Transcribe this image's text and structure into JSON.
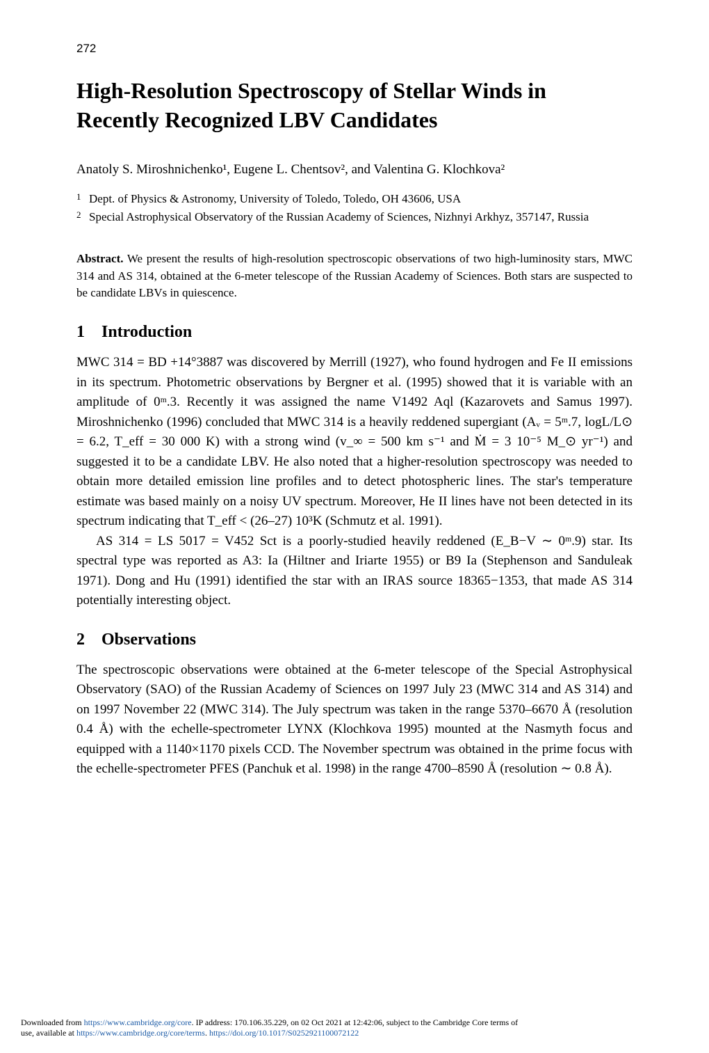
{
  "page_number": "272",
  "title": "High-Resolution Spectroscopy of Stellar Winds in Recently Recognized LBV Candidates",
  "authors": "Anatoly S. Miroshnichenko¹, Eugene L. Chentsov², and Valentina G. Klochkova²",
  "affiliations": [
    {
      "num": "1",
      "text": "Dept. of Physics & Astronomy, University of Toledo, Toledo, OH 43606, USA"
    },
    {
      "num": "2",
      "text": "Special Astrophysical Observatory of the Russian Academy of Sciences, Nizhnyi Arkhyz, 357147, Russia"
    }
  ],
  "abstract_label": "Abstract.",
  "abstract_body": " We present the results of high-resolution spectroscopic observations of two high-luminosity stars, MWC 314 and AS 314, obtained at the 6-meter telescope of the Russian Academy of Sciences. Both stars are suspected to be candidate LBVs in quiescence.",
  "sections": {
    "s1": {
      "num": "1",
      "heading": "Introduction",
      "p1": "MWC 314 = BD +14°3887 was discovered by Merrill (1927), who found hydrogen and Fe II emissions in its spectrum. Photometric observations by Bergner et al. (1995) showed that it is variable with an amplitude of 0ᵐ.3. Recently it was assigned the name V1492 Aql (Kazarovets and Samus 1997). Miroshnichenko (1996) concluded that MWC 314 is a heavily reddened supergiant (Aᵥ = 5ᵐ.7, logL/L⊙ = 6.2, T_eff = 30 000 K) with a strong wind (v_∞ = 500 km s⁻¹ and Ṁ = 3 10⁻⁵ M_⊙ yr⁻¹) and suggested it to be a candidate LBV. He also noted that a higher-resolution spectroscopy was needed to obtain more detailed emission line profiles and to detect photospheric lines. The star's temperature estimate was based mainly on a noisy UV spectrum. Moreover, He II lines have not been detected in its spectrum indicating that T_eff < (26–27) 10³K (Schmutz et al. 1991).",
      "p2": "AS 314 = LS 5017 = V452 Sct is a poorly-studied heavily reddened (E_B−V ∼ 0ᵐ.9) star. Its spectral type was reported as A3: Ia (Hiltner and Iriarte 1955) or B9 Ia (Stephenson and Sanduleak 1971). Dong and Hu (1991) identified the star with an IRAS source 18365−1353, that made AS 314 potentially interesting object."
    },
    "s2": {
      "num": "2",
      "heading": "Observations",
      "p1": "The spectroscopic observations were obtained at the 6-meter telescope of the Special Astrophysical Observatory (SAO) of the Russian Academy of Sciences on 1997 July 23 (MWC 314 and AS 314) and on 1997 November 22 (MWC 314). The July spectrum was taken in the range 5370–6670 Å (resolution 0.4 Å) with the echelle-spectrometer LYNX (Klochkova 1995) mounted at the Nasmyth focus and equipped with a 1140×1170 pixels CCD. The November spectrum was obtained in the prime focus with the echelle-spectrometer PFES (Panchuk et al. 1998) in the range 4700–8590 Å (resolution ∼ 0.8 Å)."
    }
  },
  "footer": {
    "line1_prefix": "Downloaded from ",
    "link1": "https://www.cambridge.org/core",
    "line1_mid": ". IP address: 170.106.35.229, on 02 Oct 2021 at 12:42:06, subject to the Cambridge Core terms of",
    "line2_prefix": "use, available at ",
    "link2": "https://www.cambridge.org/core/terms",
    "line2_mid": ". ",
    "link3": "https://doi.org/10.1017/S0252921100072122"
  },
  "colors": {
    "text": "#000000",
    "background": "#ffffff",
    "link": "#1b5aa6"
  },
  "typography": {
    "page_number_fontsize": 17,
    "title_fontsize": 32,
    "authors_fontsize": 19,
    "affil_fontsize": 17,
    "abstract_fontsize": 17,
    "section_heading_fontsize": 24,
    "body_fontsize": 19,
    "footer_fontsize": 12,
    "font_family": "Times New Roman"
  }
}
